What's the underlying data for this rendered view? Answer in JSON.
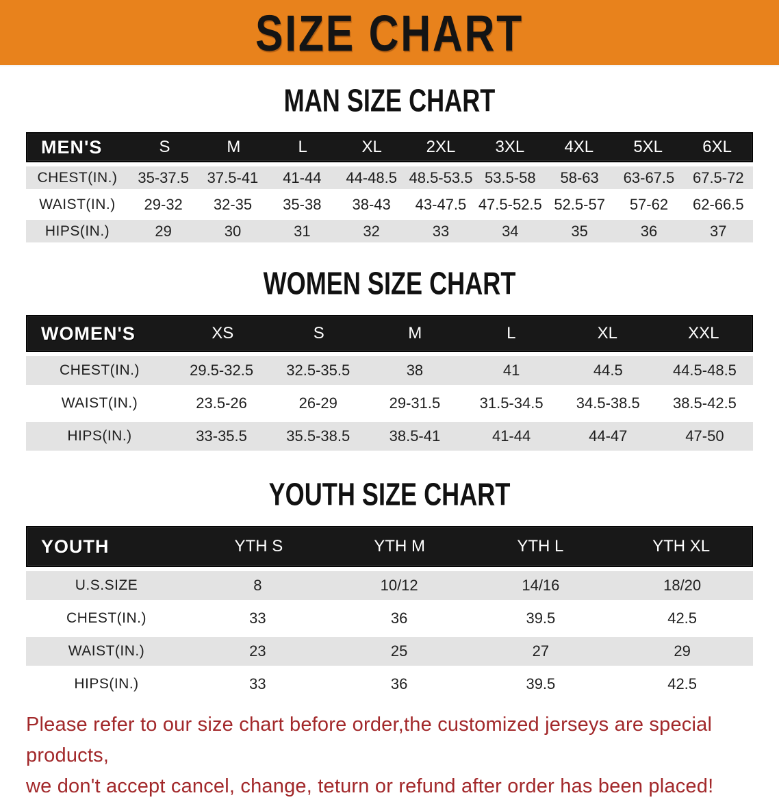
{
  "banner": {
    "title": "SIZE CHART"
  },
  "sections": {
    "men": {
      "heading": "MAN SIZE CHART"
    },
    "women": {
      "heading": "WOMEN SIZE CHART"
    },
    "youth": {
      "heading": "YOUTH SIZE CHART"
    }
  },
  "tables": {
    "men": {
      "label": "MEN'S",
      "columns": [
        "S",
        "M",
        "L",
        "XL",
        "2XL",
        "3XL",
        "4XL",
        "5XL",
        "6XL"
      ],
      "rows": [
        {
          "label": "CHEST(IN.)",
          "values": [
            "35-37.5",
            "37.5-41",
            "41-44",
            "44-48.5",
            "48.5-53.5",
            "53.5-58",
            "58-63",
            "63-67.5",
            "67.5-72"
          ]
        },
        {
          "label": "WAIST(IN.)",
          "values": [
            "29-32",
            "32-35",
            "35-38",
            "38-43",
            "43-47.5",
            "47.5-52.5",
            "52.5-57",
            "57-62",
            "62-66.5"
          ]
        },
        {
          "label": "HIPS(IN.)",
          "values": [
            "29",
            "30",
            "31",
            "32",
            "33",
            "34",
            "35",
            "36",
            "37"
          ]
        }
      ]
    },
    "women": {
      "label": "WOMEN'S",
      "columns": [
        "XS",
        "S",
        "M",
        "L",
        "XL",
        "XXL"
      ],
      "rows": [
        {
          "label": "CHEST(IN.)",
          "values": [
            "29.5-32.5",
            "32.5-35.5",
            "38",
            "41",
            "44.5",
            "44.5-48.5"
          ]
        },
        {
          "label": "WAIST(IN.)",
          "values": [
            "23.5-26",
            "26-29",
            "29-31.5",
            "31.5-34.5",
            "34.5-38.5",
            "38.5-42.5"
          ]
        },
        {
          "label": "HIPS(IN.)",
          "values": [
            "33-35.5",
            "35.5-38.5",
            "38.5-41",
            "41-44",
            "44-47",
            "47-50"
          ]
        }
      ]
    },
    "youth": {
      "label": "YOUTH",
      "columns": [
        "YTH S",
        "YTH M",
        "YTH L",
        "YTH XL"
      ],
      "rows": [
        {
          "label": "U.S.SIZE",
          "values": [
            "8",
            "10/12",
            "14/16",
            "18/20"
          ]
        },
        {
          "label": "CHEST(IN.)",
          "values": [
            "33",
            "36",
            "39.5",
            "42.5"
          ]
        },
        {
          "label": "WAIST(IN.)",
          "values": [
            "23",
            "25",
            "27",
            "29"
          ]
        },
        {
          "label": "HIPS(IN.)",
          "values": [
            "33",
            "36",
            "39.5",
            "42.5"
          ]
        }
      ]
    }
  },
  "note": {
    "line1": "Please refer to our size chart before order,the customized jerseys are special products,",
    "line2": "we don't accept cancel, change, teturn or refund after order has been placed!"
  },
  "colors": {
    "banner_orange": "#E8821C",
    "header_black": "#181818",
    "row_gray": "#E3E3E3",
    "note_red": "#A2282A",
    "text_dark": "#1E1E1E"
  }
}
